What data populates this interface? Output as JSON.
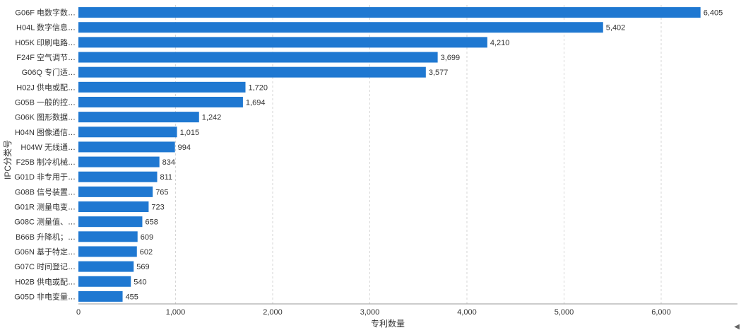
{
  "chart_data": {
    "type": "bar",
    "orientation": "horizontal",
    "title": "",
    "xlabel": "专利数量",
    "ylabel": "IPC分类号",
    "xlim": [
      0,
      6700
    ],
    "x_ticks": [
      0,
      1000,
      2000,
      3000,
      4000,
      5000,
      6000
    ],
    "x_tick_labels": [
      "0",
      "1,000",
      "2,000",
      "3,000",
      "4,000",
      "5,000",
      "6,000"
    ],
    "grid": true,
    "bar_color": "#1f78d1",
    "categories": [
      "G06F 电数字数…",
      "H04L 数字信息…",
      "H05K 印刷电路…",
      "F24F 空气调节…",
      "G06Q 专门适…",
      "H02J 供电或配…",
      "G05B 一般的控…",
      "G06K 图形数据…",
      "H04N 图像通信…",
      "H04W 无线通…",
      "F25B 制冷机械…",
      "G01D 非专用于…",
      "G08B 信号装置…",
      "G01R 测量电变…",
      "G08C 测量值、…",
      "B66B 升降机；…",
      "G06N 基于特定…",
      "G07C 时间登记…",
      "H02B 供电或配…",
      "G05D 非电变量…"
    ],
    "values": [
      6405,
      5402,
      4210,
      3699,
      3577,
      1720,
      1694,
      1242,
      1015,
      994,
      834,
      811,
      765,
      723,
      658,
      609,
      602,
      569,
      540,
      455
    ],
    "value_labels": [
      "6,405",
      "5,402",
      "4,210",
      "3,699",
      "3,577",
      "1,720",
      "1,694",
      "1,242",
      "1,015",
      "994",
      "834",
      "811",
      "765",
      "723",
      "658",
      "609",
      "602",
      "569",
      "540",
      "455"
    ]
  },
  "ui": {
    "scroll_arrow_icon": "◀"
  }
}
